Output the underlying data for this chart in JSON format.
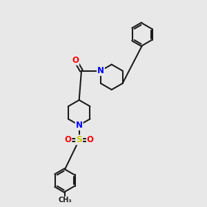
{
  "background_color": "#e8e8e8",
  "bond_color": "#1a1a1a",
  "bond_width": 1.5,
  "atom_colors": {
    "N": "#0000ff",
    "O": "#ff0000",
    "S": "#cccc00",
    "C": "#1a1a1a"
  },
  "figsize": [
    3.0,
    3.0
  ],
  "dpi": 100,
  "xlim": [
    0,
    10
  ],
  "ylim": [
    0,
    10
  ]
}
